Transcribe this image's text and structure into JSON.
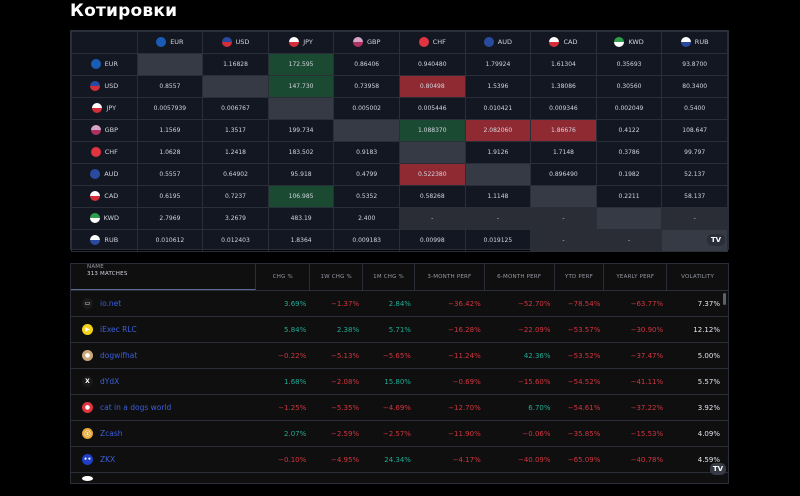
{
  "page": {
    "title": "Котировки"
  },
  "cross_rates": {
    "currencies": [
      {
        "code": "EUR",
        "icon": "eu-flag-icon",
        "c1": "#1a5bb5",
        "c2": "#1a5bb5"
      },
      {
        "code": "USD",
        "icon": "us-flag-icon",
        "c1": "#2a4aa0",
        "c2": "#d22f3a"
      },
      {
        "code": "JPY",
        "icon": "jp-flag-icon",
        "c1": "#ffffff",
        "c2": "#d22f3a"
      },
      {
        "code": "GBP",
        "icon": "gb-flag-icon",
        "c1": "#d6a4c8",
        "c2": "#b03060"
      },
      {
        "code": "CHF",
        "icon": "ch-flag-icon",
        "c1": "#e0343e",
        "c2": "#e0343e"
      },
      {
        "code": "AUD",
        "icon": "au-flag-icon",
        "c1": "#2a4aa0",
        "c2": "#2a4aa0"
      },
      {
        "code": "CAD",
        "icon": "ca-flag-icon",
        "c1": "#ffffff",
        "c2": "#d22f3a"
      },
      {
        "code": "KWD",
        "icon": "kw-flag-icon",
        "c1": "#2f9e4a",
        "c2": "#ffffff"
      },
      {
        "code": "RUB",
        "icon": "ru-flag-icon",
        "c1": "#ffffff",
        "c2": "#2a4aa0"
      }
    ],
    "rows": [
      {
        "code": "EUR",
        "cells": [
          {
            "v": "",
            "s": "diag"
          },
          {
            "v": "1.16828",
            "s": ""
          },
          {
            "v": "172.595",
            "s": "pos"
          },
          {
            "v": "0.86406",
            "s": ""
          },
          {
            "v": "0.940480",
            "s": ""
          },
          {
            "v": "1.79924",
            "s": ""
          },
          {
            "v": "1.61304",
            "s": ""
          },
          {
            "v": "0.35693",
            "s": ""
          },
          {
            "v": "93.8700",
            "s": ""
          }
        ]
      },
      {
        "code": "USD",
        "cells": [
          {
            "v": "0.8557",
            "s": ""
          },
          {
            "v": "",
            "s": "diag"
          },
          {
            "v": "147.730",
            "s": "pos"
          },
          {
            "v": "0.73958",
            "s": ""
          },
          {
            "v": "0.80498",
            "s": "neg"
          },
          {
            "v": "1.5396",
            "s": ""
          },
          {
            "v": "1.38086",
            "s": ""
          },
          {
            "v": "0.30560",
            "s": ""
          },
          {
            "v": "80.3400",
            "s": ""
          }
        ]
      },
      {
        "code": "JPY",
        "cells": [
          {
            "v": "0.0057939",
            "s": ""
          },
          {
            "v": "0.006767",
            "s": ""
          },
          {
            "v": "",
            "s": "diag"
          },
          {
            "v": "0.005002",
            "s": ""
          },
          {
            "v": "0.005446",
            "s": ""
          },
          {
            "v": "0.010421",
            "s": ""
          },
          {
            "v": "0.009346",
            "s": ""
          },
          {
            "v": "0.002049",
            "s": ""
          },
          {
            "v": "0.5400",
            "s": ""
          }
        ]
      },
      {
        "code": "GBP",
        "cells": [
          {
            "v": "1.1569",
            "s": ""
          },
          {
            "v": "1.3517",
            "s": ""
          },
          {
            "v": "199.734",
            "s": ""
          },
          {
            "v": "",
            "s": "diag"
          },
          {
            "v": "1.088370",
            "s": "pos"
          },
          {
            "v": "2.082060",
            "s": "neg"
          },
          {
            "v": "1.86676",
            "s": "neg"
          },
          {
            "v": "0.4122",
            "s": ""
          },
          {
            "v": "108.647",
            "s": ""
          }
        ]
      },
      {
        "code": "CHF",
        "cells": [
          {
            "v": "1.0628",
            "s": ""
          },
          {
            "v": "1.2418",
            "s": ""
          },
          {
            "v": "183.502",
            "s": ""
          },
          {
            "v": "0.9183",
            "s": ""
          },
          {
            "v": "",
            "s": "diag"
          },
          {
            "v": "1.9126",
            "s": ""
          },
          {
            "v": "1.7148",
            "s": ""
          },
          {
            "v": "0.3786",
            "s": ""
          },
          {
            "v": "99.797",
            "s": ""
          }
        ]
      },
      {
        "code": "AUD",
        "cells": [
          {
            "v": "0.5557",
            "s": ""
          },
          {
            "v": "0.64902",
            "s": ""
          },
          {
            "v": "95.918",
            "s": ""
          },
          {
            "v": "0.4799",
            "s": ""
          },
          {
            "v": "0.522380",
            "s": "neg"
          },
          {
            "v": "",
            "s": "diag"
          },
          {
            "v": "0.896490",
            "s": ""
          },
          {
            "v": "0.1982",
            "s": ""
          },
          {
            "v": "52.137",
            "s": ""
          }
        ]
      },
      {
        "code": "CAD",
        "cells": [
          {
            "v": "0.6195",
            "s": ""
          },
          {
            "v": "0.7237",
            "s": ""
          },
          {
            "v": "106.985",
            "s": "pos"
          },
          {
            "v": "0.5352",
            "s": ""
          },
          {
            "v": "0.58268",
            "s": ""
          },
          {
            "v": "1.1148",
            "s": ""
          },
          {
            "v": "",
            "s": "diag"
          },
          {
            "v": "0.2211",
            "s": ""
          },
          {
            "v": "58.137",
            "s": ""
          }
        ]
      },
      {
        "code": "KWD",
        "cells": [
          {
            "v": "2.7969",
            "s": ""
          },
          {
            "v": "3.2679",
            "s": ""
          },
          {
            "v": "483.19",
            "s": ""
          },
          {
            "v": "2.400",
            "s": ""
          },
          {
            "v": "-",
            "s": "na"
          },
          {
            "v": "-",
            "s": "na"
          },
          {
            "v": "-",
            "s": "na"
          },
          {
            "v": "",
            "s": "diag"
          },
          {
            "v": "-",
            "s": "na"
          }
        ]
      },
      {
        "code": "RUB",
        "cells": [
          {
            "v": "0.010612",
            "s": ""
          },
          {
            "v": "0.012403",
            "s": ""
          },
          {
            "v": "1.8364",
            "s": ""
          },
          {
            "v": "0.009183",
            "s": ""
          },
          {
            "v": "0.00998",
            "s": ""
          },
          {
            "v": "0.019125",
            "s": ""
          },
          {
            "v": "-",
            "s": "na"
          },
          {
            "v": "-",
            "s": "na"
          },
          {
            "v": "",
            "s": "diag"
          }
        ]
      }
    ],
    "logo": "TV"
  },
  "screener": {
    "header": {
      "name": "Name",
      "matches": "313 matches",
      "columns": [
        "Chg %",
        "1W chg %",
        "1M chg %",
        "3-Month Perf",
        "6-Month Perf",
        "YTD Perf",
        "Yearly Perf",
        "Volatility"
      ]
    },
    "rows": [
      {
        "name": "io.net",
        "icon": "io-net-icon",
        "glyph": "▭",
        "bg": "#1a1a1a",
        "vals": [
          "3.69%",
          "−1.37%",
          "2.84%",
          "−36.42%",
          "−52.70%",
          "−78.54%",
          "−63.77%",
          "7.37%"
        ]
      },
      {
        "name": "iExec RLC",
        "icon": "iexec-icon",
        "glyph": "▶",
        "bg": "#f3d21d",
        "vals": [
          "5.84%",
          "2.38%",
          "5.71%",
          "−16.28%",
          "−22.09%",
          "−53.57%",
          "−30.90%",
          "12.12%"
        ]
      },
      {
        "name": "dogwifhat",
        "icon": "dogwifhat-icon",
        "glyph": "●",
        "bg": "#c9a87a",
        "vals": [
          "−0.22%",
          "−5.13%",
          "−5.65%",
          "−11.24%",
          "42.36%",
          "−53.52%",
          "−37.47%",
          "5.00%"
        ]
      },
      {
        "name": "dYdX",
        "icon": "dydx-icon",
        "glyph": "X",
        "bg": "#1a1a1a",
        "vals": [
          "1.68%",
          "−2.08%",
          "15.80%",
          "−0.69%",
          "−15.60%",
          "−54.52%",
          "−41.11%",
          "5.57%"
        ]
      },
      {
        "name": "cat in a dogs world",
        "icon": "cat-icon",
        "glyph": "●",
        "bg": "#e0343e",
        "vals": [
          "−1.25%",
          "−5.35%",
          "−4.69%",
          "−12.70%",
          "6.70%",
          "−54.61%",
          "−37.22%",
          "3.92%"
        ]
      },
      {
        "name": "Zcash",
        "icon": "zcash-icon",
        "glyph": "ⓩ",
        "bg": "#e8a93b",
        "vals": [
          "2.07%",
          "−2.59%",
          "−2.57%",
          "−11.90%",
          "−0.06%",
          "−35.85%",
          "−15.53%",
          "4.09%"
        ]
      },
      {
        "name": "ZKX",
        "icon": "zkx-icon",
        "glyph": "••",
        "bg": "#1f3fc4",
        "vals": [
          "−0.10%",
          "−4.95%",
          "24.34%",
          "−4.17%",
          "−40.09%",
          "−65.09%",
          "−40.78%",
          "4.59%"
        ]
      }
    ],
    "logo": "TV"
  }
}
